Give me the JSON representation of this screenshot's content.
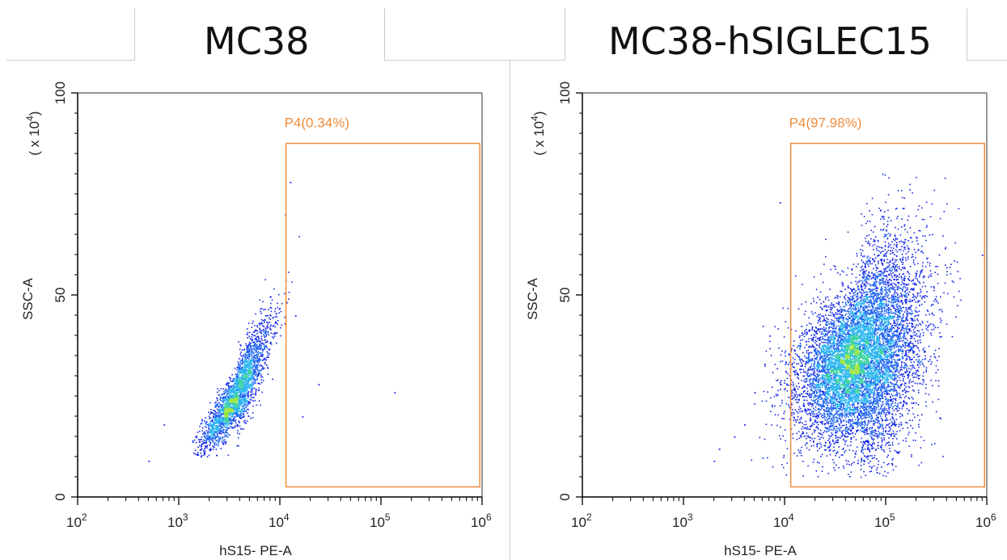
{
  "colors": {
    "gate": "#f08c3c",
    "axis": "#000000",
    "density": [
      "#1428e6",
      "#1e64f0",
      "#28b4f0",
      "#3cd2a0",
      "#a0e646"
    ]
  },
  "chart_data": [
    {
      "type": "scatter",
      "title": "MC38",
      "xlabel": "hS15- PE-A",
      "ylabel": "SSC-A",
      "yscale_label": "( x 10",
      "yscale_exp": "4",
      "xscale": "log",
      "xlim": [
        100,
        1000000
      ],
      "ylim": [
        0,
        100
      ],
      "x_ticks": [
        {
          "base": "10",
          "exp": "2"
        },
        {
          "base": "10",
          "exp": "3"
        },
        {
          "base": "10",
          "exp": "4"
        },
        {
          "base": "10",
          "exp": "5"
        },
        {
          "base": "10",
          "exp": "6"
        }
      ],
      "y_ticks": [
        "0",
        "50",
        "100"
      ],
      "gate": {
        "label": "P4(0.34%)",
        "x_range": [
          11500,
          950000
        ],
        "y_range": [
          2.5,
          87.5
        ]
      },
      "population": {
        "center_log10_x": 3.57,
        "center_y": 25,
        "spread_log10_x": 0.17,
        "spread_y": 7.5,
        "correlation": 0.88,
        "count": 2600,
        "min_y": 10,
        "max_y": 82
      },
      "outliers": [
        [
          2.7,
          9
        ],
        [
          2.85,
          18
        ],
        [
          4.15,
          45
        ],
        [
          4.22,
          20
        ],
        [
          4.38,
          28
        ],
        [
          5.13,
          26
        ],
        [
          4.1,
          78
        ],
        [
          4.05,
          70
        ]
      ]
    },
    {
      "type": "scatter",
      "title": "MC38-hSIGLEC15",
      "xlabel": "hS15- PE-A",
      "ylabel": "SSC-A",
      "yscale_label": "( x 10",
      "yscale_exp": "4",
      "xscale": "log",
      "xlim": [
        100,
        1000000
      ],
      "ylim": [
        0,
        100
      ],
      "x_ticks": [
        {
          "base": "10",
          "exp": "2"
        },
        {
          "base": "10",
          "exp": "3"
        },
        {
          "base": "10",
          "exp": "4"
        },
        {
          "base": "10",
          "exp": "5"
        },
        {
          "base": "10",
          "exp": "6"
        }
      ],
      "y_ticks": [
        "0",
        "50",
        "100"
      ],
      "gate": {
        "label": "P4(97.98%)",
        "x_range": [
          11500,
          950000
        ],
        "y_range": [
          2.5,
          87.5
        ]
      },
      "population": {
        "center_log10_x": 4.75,
        "center_y": 34,
        "spread_log10_x": 0.3,
        "spread_y": 11,
        "correlation": 0.35,
        "count": 9000,
        "min_y": 5,
        "max_y": 86
      },
      "outliers": [
        [
          3.3,
          9
        ],
        [
          3.35,
          12
        ],
        [
          3.6,
          18
        ],
        [
          3.7,
          26
        ],
        [
          3.8,
          33
        ],
        [
          3.85,
          40
        ],
        [
          3.95,
          73
        ],
        [
          5.95,
          60
        ],
        [
          3.5,
          15
        ]
      ]
    }
  ]
}
